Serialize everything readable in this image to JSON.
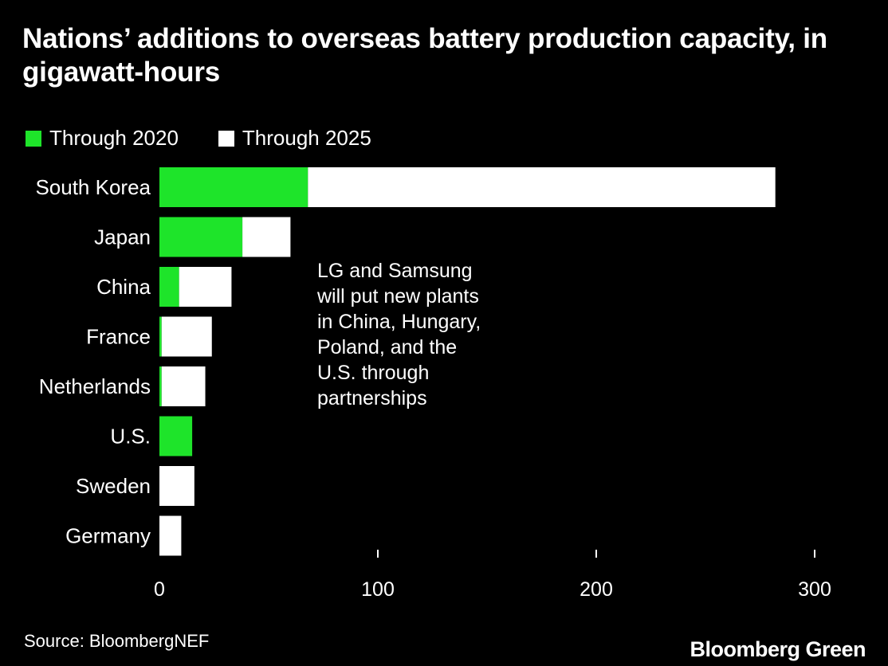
{
  "title": "Nations’ additions to overseas battery production capacity, in gigawatt-hours",
  "legend": [
    {
      "label": "Through 2020",
      "color": "#1ee42a"
    },
    {
      "label": "Through 2025",
      "color": "#ffffff"
    }
  ],
  "annotation": {
    "lines": [
      "LG and Samsung",
      "will put new plants",
      "in China, Hungary,",
      "Poland, and the",
      "U.S. through",
      "partnerships"
    ]
  },
  "source": "Source: BloombergNEF",
  "brand": "Bloomberg Green",
  "chart_data": {
    "type": "bar",
    "orientation": "horizontal",
    "stacked": true,
    "categories": [
      "South Korea",
      "Japan",
      "China",
      "France",
      "Netherlands",
      "U.S.",
      "Sweden",
      "Germany"
    ],
    "series": [
      {
        "name": "Through 2020",
        "color": "#1ee42a",
        "values": [
          68,
          38,
          9,
          1,
          1,
          15,
          0,
          0
        ]
      },
      {
        "name": "Through 2025",
        "color": "#ffffff",
        "values": [
          214,
          22,
          24,
          23,
          20,
          0,
          16,
          10
        ]
      }
    ],
    "xlim": [
      0,
      300
    ],
    "xticks": [
      0,
      100,
      200,
      300
    ],
    "grid": false,
    "legend_position": "top-left"
  }
}
